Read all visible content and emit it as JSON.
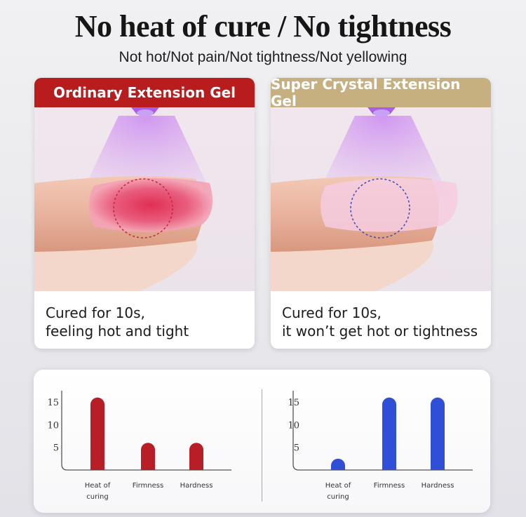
{
  "page": {
    "title": "No heat of cure / No tightness",
    "subtitle": "Not hot/Not pain/Not tightness/Not yellowing"
  },
  "cards": [
    {
      "header": "Ordinary Extension Gel",
      "header_color": "#b81c1c",
      "circle_color": "#c0283a",
      "caption_line1": "Cured for 10s,",
      "caption_line2": "feeling hot and tight"
    },
    {
      "header": "Super Crystal Extension Gel",
      "header_color": "#c7b080",
      "circle_color": "#3a4ab8",
      "caption_line1": "Cured for 10s,",
      "caption_line2": "it won’t get hot or tightness"
    }
  ],
  "chart_data": [
    {
      "type": "bar",
      "categories": [
        "Heat of curing",
        "Firmness",
        "Hardness"
      ],
      "category_lines": [
        [
          "Heat of",
          "curing"
        ],
        [
          "Firmness"
        ],
        [
          "Hardness"
        ]
      ],
      "values": [
        16,
        6,
        6
      ],
      "yticks": [
        5,
        10,
        15
      ],
      "ylim": [
        0,
        17.5
      ],
      "bar_color": "#b81e26",
      "grid": false
    },
    {
      "type": "bar",
      "categories": [
        "Heat of curing",
        "Firmness",
        "Hardness"
      ],
      "category_lines": [
        [
          "Heat of",
          "curing"
        ],
        [
          "Firmness"
        ],
        [
          "Hardness"
        ]
      ],
      "values": [
        2.5,
        16,
        16
      ],
      "yticks": [
        5,
        10,
        15
      ],
      "ylim": [
        0,
        17.5
      ],
      "bar_color": "#2f4fd6",
      "grid": false
    }
  ]
}
